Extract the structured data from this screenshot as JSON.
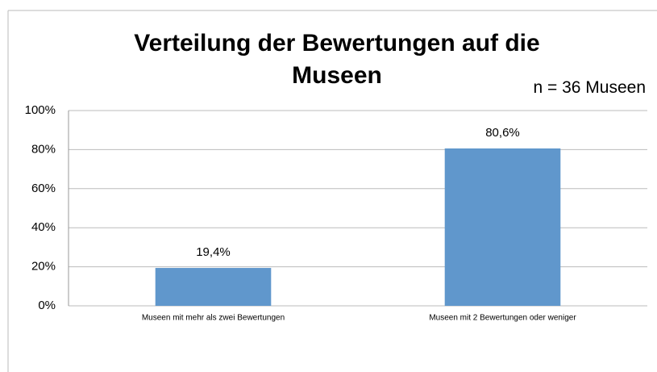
{
  "chart_data": {
    "type": "bar",
    "title": "Verteilung der Bewertungen auf die Museen",
    "annotation": "n = 36 Museen",
    "categories": [
      "Museen mit mehr als zwei Bewertungen",
      "Museen mit 2 Bewertungen oder weniger"
    ],
    "values": [
      19.4,
      80.6
    ],
    "value_labels": [
      "19,4%",
      "80,6%"
    ],
    "color": "#6097cc",
    "ylim": [
      0,
      100
    ],
    "yticks": [
      {
        "value": 0,
        "label": "0%"
      },
      {
        "value": 20,
        "label": "20%"
      },
      {
        "value": 40,
        "label": "40%"
      },
      {
        "value": 60,
        "label": "60%"
      },
      {
        "value": 80,
        "label": "80%"
      },
      {
        "value": 100,
        "label": "100%"
      }
    ],
    "grid": true
  }
}
